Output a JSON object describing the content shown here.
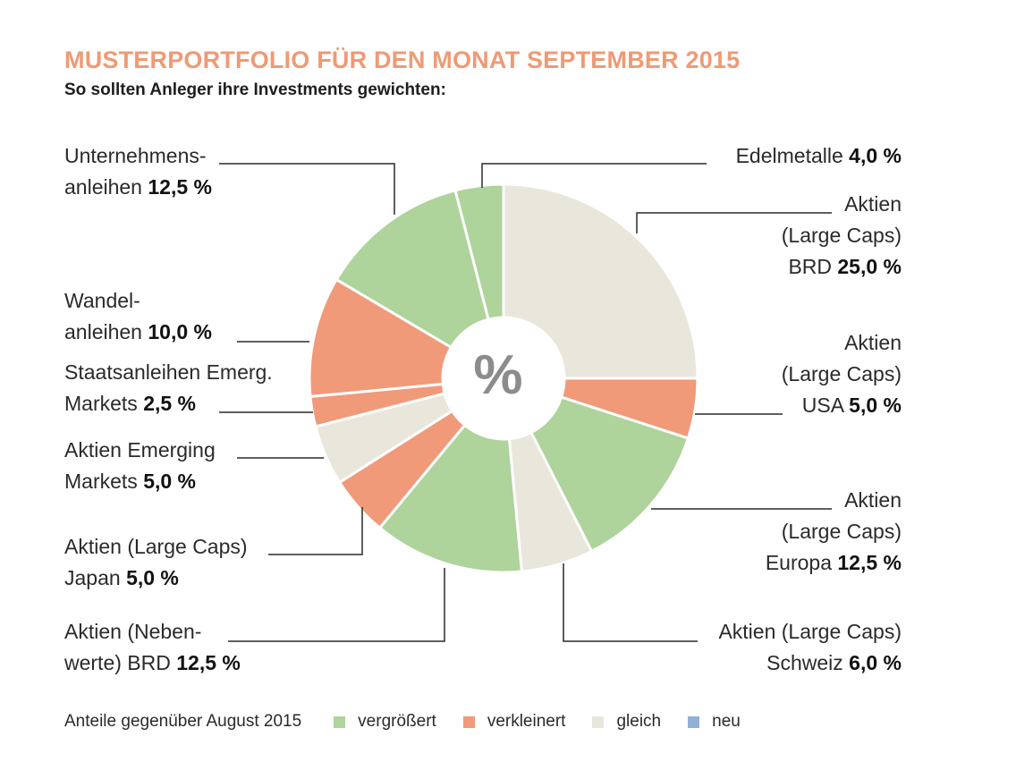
{
  "header": {
    "title": "MUSTERPORTFOLIO FÜR DEN MONAT SEPTEMBER 2015",
    "subtitle": "So sollten Anleger ihre Investments gewichten:"
  },
  "chart_data": {
    "type": "pie",
    "title": "MUSTERPORTFOLIO FÜR DEN MONAT SEPTEMBER 2015",
    "subtitle": "So sollten Anleger ihre Investments gewichten:",
    "center_label": "%",
    "unit": "%",
    "slices": [
      {
        "id": "aktien-large-caps-brd",
        "lines": [
          "Aktien",
          "(Large Caps)",
          "BRD"
        ],
        "value": 25.0,
        "value_label": "25,0 %",
        "status": "gleich"
      },
      {
        "id": "aktien-large-caps-usa",
        "lines": [
          "Aktien",
          "(Large Caps)",
          "USA"
        ],
        "value": 5.0,
        "value_label": "5,0 %",
        "status": "verkleinert"
      },
      {
        "id": "aktien-large-caps-europa",
        "lines": [
          "Aktien",
          "(Large Caps)",
          "Europa"
        ],
        "value": 12.5,
        "value_label": "12,5 %",
        "status": "vergrößert"
      },
      {
        "id": "aktien-large-caps-schweiz",
        "lines": [
          "Aktien (Large Caps)",
          "Schweiz"
        ],
        "value": 6.0,
        "value_label": "6,0 %",
        "status": "gleich"
      },
      {
        "id": "aktien-nebenwerte-brd",
        "lines": [
          "Aktien (Neben-",
          "werte) BRD"
        ],
        "value": 12.5,
        "value_label": "12,5 %",
        "status": "vergrößert"
      },
      {
        "id": "aktien-large-caps-japan",
        "lines": [
          "Aktien (Large Caps)",
          "Japan"
        ],
        "value": 5.0,
        "value_label": "5,0 %",
        "status": "verkleinert"
      },
      {
        "id": "aktien-emerging-markets",
        "lines": [
          "Aktien Emerging",
          "Markets"
        ],
        "value": 5.0,
        "value_label": "5,0 %",
        "status": "gleich"
      },
      {
        "id": "staatsanleihen-emerg-markets",
        "lines": [
          "Staatsanleihen Emerg.",
          "Markets"
        ],
        "value": 2.5,
        "value_label": "2,5 %",
        "status": "verkleinert"
      },
      {
        "id": "wandelanleihen",
        "lines": [
          "Wandel-",
          "anleihen"
        ],
        "value": 10.0,
        "value_label": "10,0 %",
        "status": "verkleinert"
      },
      {
        "id": "unternehmensanleihen",
        "lines": [
          "Unternehmens-",
          "anleihen"
        ],
        "value": 12.5,
        "value_label": "12,5 %",
        "status": "vergrößert"
      },
      {
        "id": "edelmetalle",
        "lines": [
          "Edelmetalle"
        ],
        "value": 4.0,
        "value_label": "4,0 %",
        "status": "vergrößert"
      }
    ],
    "legend": {
      "intro": "Anteile gegenüber August 2015",
      "items": [
        {
          "key": "vergrößert",
          "label": "vergrößert",
          "color": "#aed39b"
        },
        {
          "key": "verkleinert",
          "label": "verkleinert",
          "color": "#f09a7a"
        },
        {
          "key": "gleich",
          "label": "gleich",
          "color": "#e9e6dc"
        },
        {
          "key": "neu",
          "label": "neu",
          "color": "#93b0d3"
        }
      ]
    }
  }
}
